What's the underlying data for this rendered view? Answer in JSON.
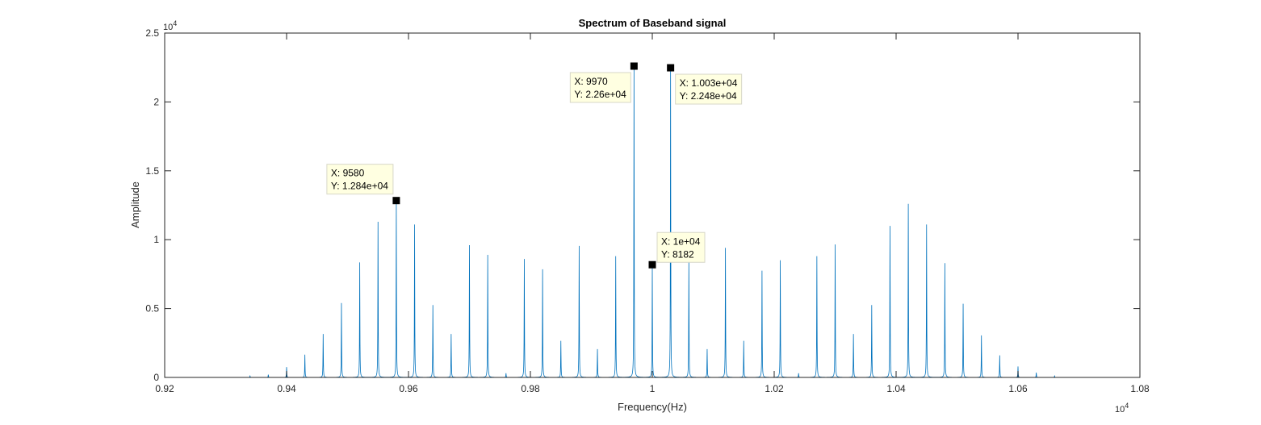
{
  "chart_data": {
    "type": "line",
    "title": "Spectrum of Baseband signal",
    "xlabel": "Frequency(Hz)",
    "ylabel": "Amplitude",
    "xlim": [
      9200,
      10800
    ],
    "ylim": [
      0,
      25000
    ],
    "x_ticks": [
      9200,
      9400,
      9600,
      9800,
      10000,
      10200,
      10400,
      10600,
      10800
    ],
    "x_tick_labels": [
      "0.92",
      "0.94",
      "0.96",
      "0.98",
      "1",
      "1.02",
      "1.04",
      "1.06",
      "1.08"
    ],
    "x_exponent": "10",
    "x_exponent_power": "4",
    "y_ticks": [
      0,
      5000,
      10000,
      15000,
      20000,
      25000
    ],
    "y_tick_labels": [
      "0",
      "0.5",
      "1",
      "1.5",
      "2",
      "2.5"
    ],
    "y_exponent": "10",
    "y_exponent_power": "4",
    "grid": false,
    "color": "#0072BD",
    "series": [
      {
        "peaks_x": [
          9340,
          9370,
          9400,
          9430,
          9460,
          9490,
          9520,
          9550,
          9580,
          9610,
          9640,
          9670,
          9700,
          9730,
          9760,
          9790,
          9820,
          9850,
          9880,
          9910,
          9940,
          9970,
          10000,
          10030,
          10060,
          10090,
          10120,
          10150,
          10180,
          10210,
          10240,
          10270,
          10300,
          10330,
          10360,
          10390,
          10420,
          10450,
          10480,
          10510,
          10540,
          10570,
          10600,
          10630,
          10660
        ],
        "peaks_y": [
          100,
          200,
          750,
          1650,
          3150,
          5400,
          8350,
          11300,
          12840,
          11100,
          5250,
          3150,
          9600,
          8900,
          300,
          8600,
          7850,
          2650,
          9550,
          2050,
          8800,
          22600,
          8182,
          22480,
          8600,
          2050,
          9400,
          2650,
          7750,
          8500,
          300,
          8800,
          9650,
          3150,
          5250,
          11000,
          12600,
          11100,
          8300,
          5350,
          3050,
          1600,
          800,
          350,
          100
        ]
      }
    ],
    "datatips": [
      {
        "x": 9580,
        "y": 12840,
        "x_text": "X: 9580",
        "y_text": "Y: 1.284e+04",
        "placement": "upper-left"
      },
      {
        "x": 9970,
        "y": 22600,
        "x_text": "X: 9970",
        "y_text": "Y: 2.26e+04",
        "placement": "lower-left"
      },
      {
        "x": 10030,
        "y": 22480,
        "x_text": "X: 1.003e+04",
        "y_text": "Y: 2.248e+04",
        "placement": "lower-right"
      },
      {
        "x": 10000,
        "y": 8182,
        "x_text": "X: 1e+04",
        "y_text": "Y: 8182",
        "placement": "upper-right"
      }
    ]
  }
}
